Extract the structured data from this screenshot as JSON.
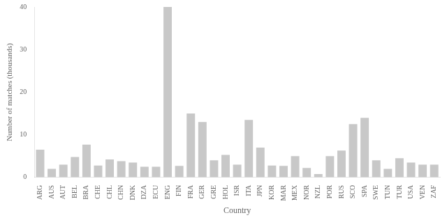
{
  "chart_data": {
    "type": "bar",
    "categories": [
      "ARG",
      "AUS",
      "AUT",
      "BEL",
      "BRA",
      "CHE",
      "CHL",
      "CHN",
      "DNK",
      "DZA",
      "ECU",
      "ENG",
      "FIN",
      "FRA",
      "GER",
      "GRE",
      "HOL",
      "ISR",
      "ITA",
      "JPN",
      "KOR",
      "MAR",
      "MEX",
      "NOR",
      "NZL",
      "POR",
      "RUS",
      "SCO",
      "SPA",
      "SWE",
      "TUN",
      "TUR",
      "USA",
      "VEN",
      "ZAF"
    ],
    "values": [
      6.5,
      2.0,
      3.0,
      4.8,
      7.7,
      2.8,
      4.2,
      3.8,
      3.5,
      2.5,
      2.5,
      40.0,
      2.7,
      15.0,
      13.0,
      4.0,
      5.3,
      3.0,
      13.5,
      7.0,
      2.8,
      2.7,
      5.0,
      2.2,
      0.8,
      5.0,
      6.3,
      12.5,
      14.0,
      4.0,
      2.0,
      4.5,
      3.5,
      3.0,
      3.0
    ],
    "color": "#c8c8c8",
    "xlabel": "Country",
    "ylabel": "Number of matches (thousands)",
    "ylim": [
      0,
      40
    ],
    "yticks": [
      0,
      10,
      20,
      30,
      40
    ],
    "grid": false
  }
}
